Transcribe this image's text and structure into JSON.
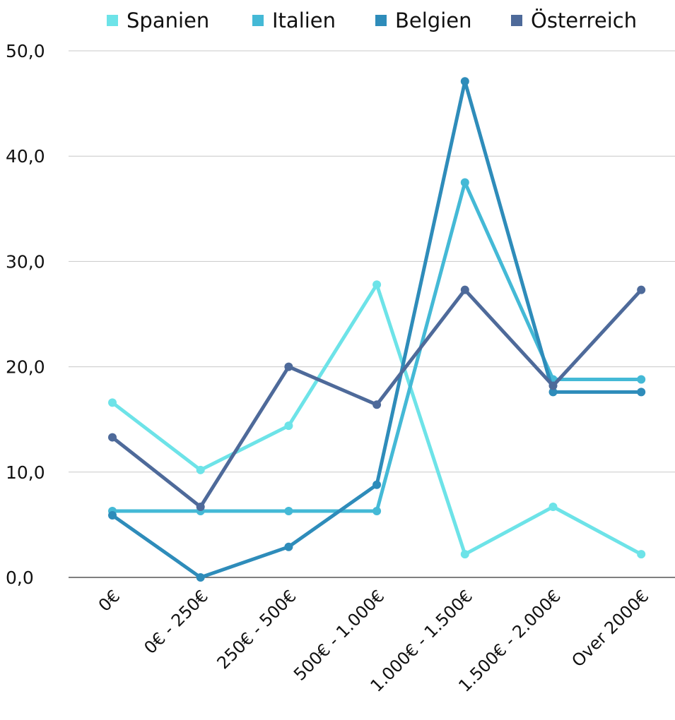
{
  "chart_data": {
    "type": "line",
    "title": "",
    "xlabel": "",
    "ylabel": "",
    "categories": [
      "0€",
      "0€ - 250€",
      "250€ - 500€",
      "500€ - 1.000€",
      "1.000€ - 1.500€",
      "1.500€ - 2.000€",
      "Over 2000€"
    ],
    "ylim": [
      0,
      50
    ],
    "yticks": [
      "0,0",
      "10,0",
      "20,0",
      "30,0",
      "40,0",
      "50,0"
    ],
    "ytick_values": [
      0,
      10,
      20,
      30,
      40,
      50
    ],
    "grid": true,
    "legend_position": "top",
    "series": [
      {
        "name": "Spanien",
        "color": "#6de3e8",
        "values": [
          16.6,
          10.2,
          14.4,
          27.8,
          2.2,
          6.7,
          2.2
        ]
      },
      {
        "name": "Italien",
        "color": "#44b9d6",
        "values": [
          6.3,
          6.3,
          6.3,
          6.3,
          37.5,
          18.8,
          18.8
        ]
      },
      {
        "name": "Belgien",
        "color": "#2e8cba",
        "values": [
          5.9,
          0.0,
          2.9,
          8.8,
          47.1,
          17.6,
          17.6
        ]
      },
      {
        "name": "Österreich",
        "color": "#4e6a9a",
        "values": [
          13.3,
          6.7,
          20.0,
          16.4,
          27.3,
          18.2,
          27.3
        ]
      }
    ]
  }
}
